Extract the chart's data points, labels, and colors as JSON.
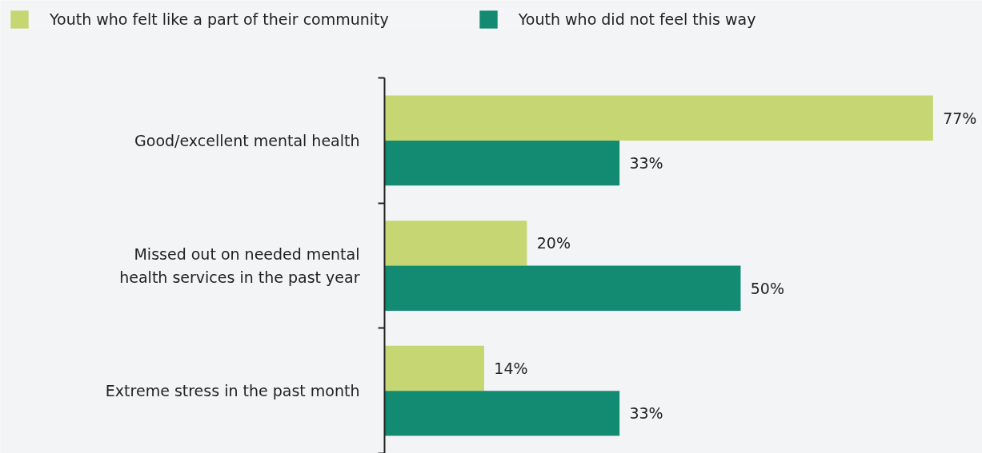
{
  "chart_data": {
    "type": "bar",
    "orientation": "horizontal",
    "categories": [
      "Good/excellent mental health",
      "Missed out on needed mental health services in the past year",
      "Extreme stress in the past month"
    ],
    "series": [
      {
        "name": "Youth who felt like a part of their community",
        "color": "#c5d672",
        "values": [
          77,
          20,
          14
        ],
        "value_labels": [
          "77%",
          "20%",
          "14%"
        ]
      },
      {
        "name": "Youth who did not feel this way",
        "color": "#138a72",
        "values": [
          33,
          50,
          33
        ],
        "value_labels": [
          "33%",
          "50%",
          "33%"
        ]
      }
    ],
    "legend": "top",
    "grid": false,
    "tick_labels": "y"
  }
}
